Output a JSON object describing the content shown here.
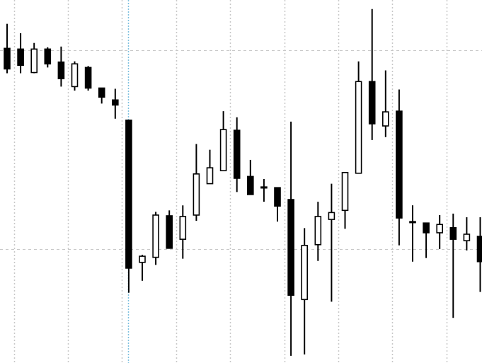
{
  "chart_data": {
    "type": "candlestick",
    "title": "",
    "xlabel": "",
    "ylabel": "",
    "grid": true,
    "legend": "none",
    "ylim": [
      0,
      100
    ],
    "candles": [
      {
        "open": 86.6,
        "high": 93.4,
        "low": 79.7,
        "close": 80.9
      },
      {
        "open": 86.4,
        "high": 90.8,
        "low": 79.7,
        "close": 81.9
      },
      {
        "open": 79.9,
        "high": 88.1,
        "low": 79.7,
        "close": 86.4
      },
      {
        "open": 86.4,
        "high": 86.9,
        "low": 81.3,
        "close": 82.3
      },
      {
        "open": 82.8,
        "high": 87.1,
        "low": 76.0,
        "close": 78.2
      },
      {
        "open": 76.0,
        "high": 83.0,
        "low": 74.9,
        "close": 82.3
      },
      {
        "open": 81.3,
        "high": 81.7,
        "low": 74.9,
        "close": 75.6
      },
      {
        "open": 75.6,
        "high": 75.6,
        "low": 71.3,
        "close": 73.1
      },
      {
        "open": 72.3,
        "high": 75.4,
        "low": 67.1,
        "close": 70.9
      },
      {
        "open": 66.7,
        "high": 66.7,
        "low": 18.9,
        "close": 25.7
      },
      {
        "open": 27.3,
        "high": 29.4,
        "low": 22.2,
        "close": 29.0
      },
      {
        "open": 28.7,
        "high": 41.3,
        "low": 26.6,
        "close": 40.4
      },
      {
        "open": 40.2,
        "high": 41.7,
        "low": 31.2,
        "close": 31.2
      },
      {
        "open": 33.7,
        "high": 43.1,
        "low": 28.3,
        "close": 40.0
      },
      {
        "open": 40.4,
        "high": 60.1,
        "low": 38.8,
        "close": 51.8
      },
      {
        "open": 49.1,
        "high": 58.5,
        "low": 49.1,
        "close": 53.5
      },
      {
        "open": 52.7,
        "high": 69.2,
        "low": 52.7,
        "close": 64.1
      },
      {
        "open": 63.9,
        "high": 67.5,
        "low": 46.8,
        "close": 50.6
      },
      {
        "open": 51.1,
        "high": 55.7,
        "low": 46.1,
        "close": 46.1
      },
      {
        "open": 48.0,
        "high": 50.4,
        "low": 44.1,
        "close": 48.2
      },
      {
        "open": 48.0,
        "high": 48.0,
        "low": 38.6,
        "close": 42.9
      },
      {
        "open": 44.7,
        "high": 66.3,
        "low": 1.4,
        "close": 18.2
      },
      {
        "open": 17.0,
        "high": 36.8,
        "low": 1.8,
        "close": 32.0
      },
      {
        "open": 32.2,
        "high": 44.1,
        "low": 27.7,
        "close": 40.0
      },
      {
        "open": 39.2,
        "high": 49.1,
        "low": 16.4,
        "close": 41.1
      },
      {
        "open": 41.7,
        "high": 52.2,
        "low": 36.6,
        "close": 52.2
      },
      {
        "open": 52.0,
        "high": 83.0,
        "low": 52.0,
        "close": 77.4
      },
      {
        "open": 77.4,
        "high": 97.5,
        "low": 61.2,
        "close": 65.7
      },
      {
        "open": 65.1,
        "high": 80.5,
        "low": 62.0,
        "close": 69.0
      },
      {
        "open": 69.2,
        "high": 75.2,
        "low": 32.0,
        "close": 39.6
      },
      {
        "open": 38.6,
        "high": 43.1,
        "low": 27.5,
        "close": 38.6
      },
      {
        "open": 38.2,
        "high": 38.2,
        "low": 28.5,
        "close": 35.5
      },
      {
        "open": 35.5,
        "high": 40.4,
        "low": 31.0,
        "close": 37.8
      },
      {
        "open": 36.9,
        "high": 40.8,
        "low": 11.9,
        "close": 33.7
      },
      {
        "open": 33.3,
        "high": 39.8,
        "low": 30.6,
        "close": 35.1
      },
      {
        "open": 34.5,
        "high": 39.8,
        "low": 19.1,
        "close": 27.5
      }
    ]
  },
  "colors": {
    "background": "#ffffff",
    "candle": "#000000",
    "grid": "#c8c8c8",
    "crosshair": "#7fc1e0"
  }
}
